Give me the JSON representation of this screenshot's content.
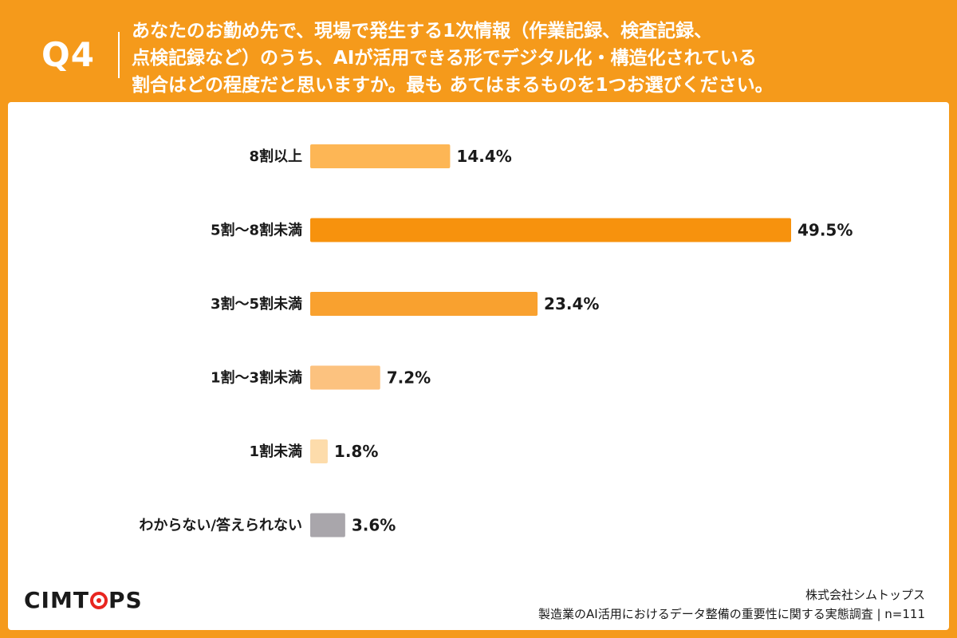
{
  "header": {
    "question_number": "Q4",
    "question_lines": [
      "あなたのお勤め先で、現場で発生する1次情報（作業記録、検査記録、",
      "点検記録など）のうち、AIが活用できる形でデジタル化・構造化されている",
      "割合はどの程度だと思いますか。最も あてはまるものを1つお選びください。"
    ]
  },
  "chart_data": {
    "type": "bar",
    "orientation": "horizontal",
    "title": "",
    "xlabel": "",
    "ylabel": "",
    "categories": [
      "8割以上",
      "5割〜8割未満",
      "3割〜5割未満",
      "1割〜3割未満",
      "1割未満",
      "わからない/答えられない"
    ],
    "values": [
      14.4,
      49.5,
      23.4,
      7.2,
      1.8,
      3.6
    ],
    "value_labels": [
      "14.4%",
      "49.5%",
      "23.4%",
      "7.2%",
      "1.8%",
      "3.6%"
    ],
    "bar_colors": [
      "#fdb655",
      "#f7920d",
      "#f9a12f",
      "#fcc27f",
      "#fddcab",
      "#a9a6ab"
    ],
    "xlim": [
      0,
      49.5
    ],
    "grid": false,
    "legend": "none"
  },
  "footer": {
    "logo": "CIMTOPS",
    "company": "株式会社シムトップス",
    "survey": "製造業のAI活用におけるデータ整備の重要性に関する実態調査 | n=111"
  },
  "colors": {
    "brand_orange": "#f59a1b",
    "logo_red": "#e8251f",
    "text": "#1a1a1a"
  }
}
